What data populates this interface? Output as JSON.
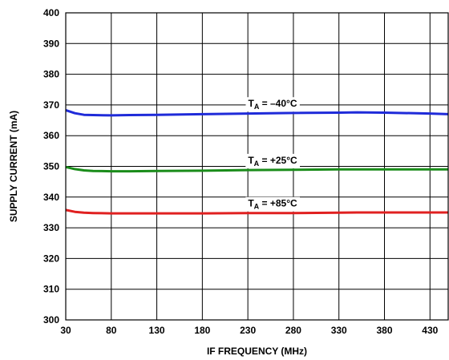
{
  "chart_data": {
    "type": "line",
    "title": "",
    "xlabel": "IF FREQUENCY (MHz)",
    "ylabel": "SUPPLY CURRENT (mA)",
    "xlim": [
      30,
      450
    ],
    "ylim": [
      300,
      400
    ],
    "xticks": [
      30,
      80,
      130,
      180,
      230,
      280,
      330,
      380,
      430
    ],
    "yticks": [
      300,
      310,
      320,
      330,
      340,
      350,
      360,
      370,
      380,
      390,
      400
    ],
    "grid": true,
    "legend": "inline-labels",
    "series": [
      {
        "label_main": "T",
        "label_sub": "A",
        "label_rest": " = –40°C",
        "color": "#1f2bd9",
        "x": [
          30,
          40,
          50,
          60,
          80,
          100,
          130,
          180,
          230,
          280,
          330,
          350,
          380,
          430,
          450
        ],
        "y": [
          368.3,
          367.3,
          366.8,
          366.7,
          366.6,
          366.7,
          366.8,
          367.0,
          367.2,
          367.4,
          367.5,
          367.6,
          367.5,
          367.2,
          367.0
        ]
      },
      {
        "label_main": "T",
        "label_sub": "A",
        "label_rest": " = +25°C",
        "color": "#1a8c1a",
        "x": [
          30,
          40,
          50,
          60,
          80,
          100,
          130,
          180,
          230,
          280,
          330,
          350,
          380,
          430,
          450
        ],
        "y": [
          349.8,
          349.1,
          348.7,
          348.5,
          348.4,
          348.4,
          348.5,
          348.6,
          348.8,
          348.9,
          349.0,
          349.0,
          349.0,
          349.0,
          349.0
        ]
      },
      {
        "label_main": "T",
        "label_sub": "A",
        "label_rest": " = +85°C",
        "color": "#e02020",
        "x": [
          30,
          40,
          50,
          60,
          80,
          100,
          130,
          180,
          230,
          280,
          330,
          350,
          380,
          430,
          450
        ],
        "y": [
          335.8,
          335.2,
          334.9,
          334.8,
          334.7,
          334.7,
          334.7,
          334.7,
          334.8,
          334.8,
          334.9,
          335.0,
          335.0,
          335.0,
          335.0
        ]
      }
    ]
  }
}
